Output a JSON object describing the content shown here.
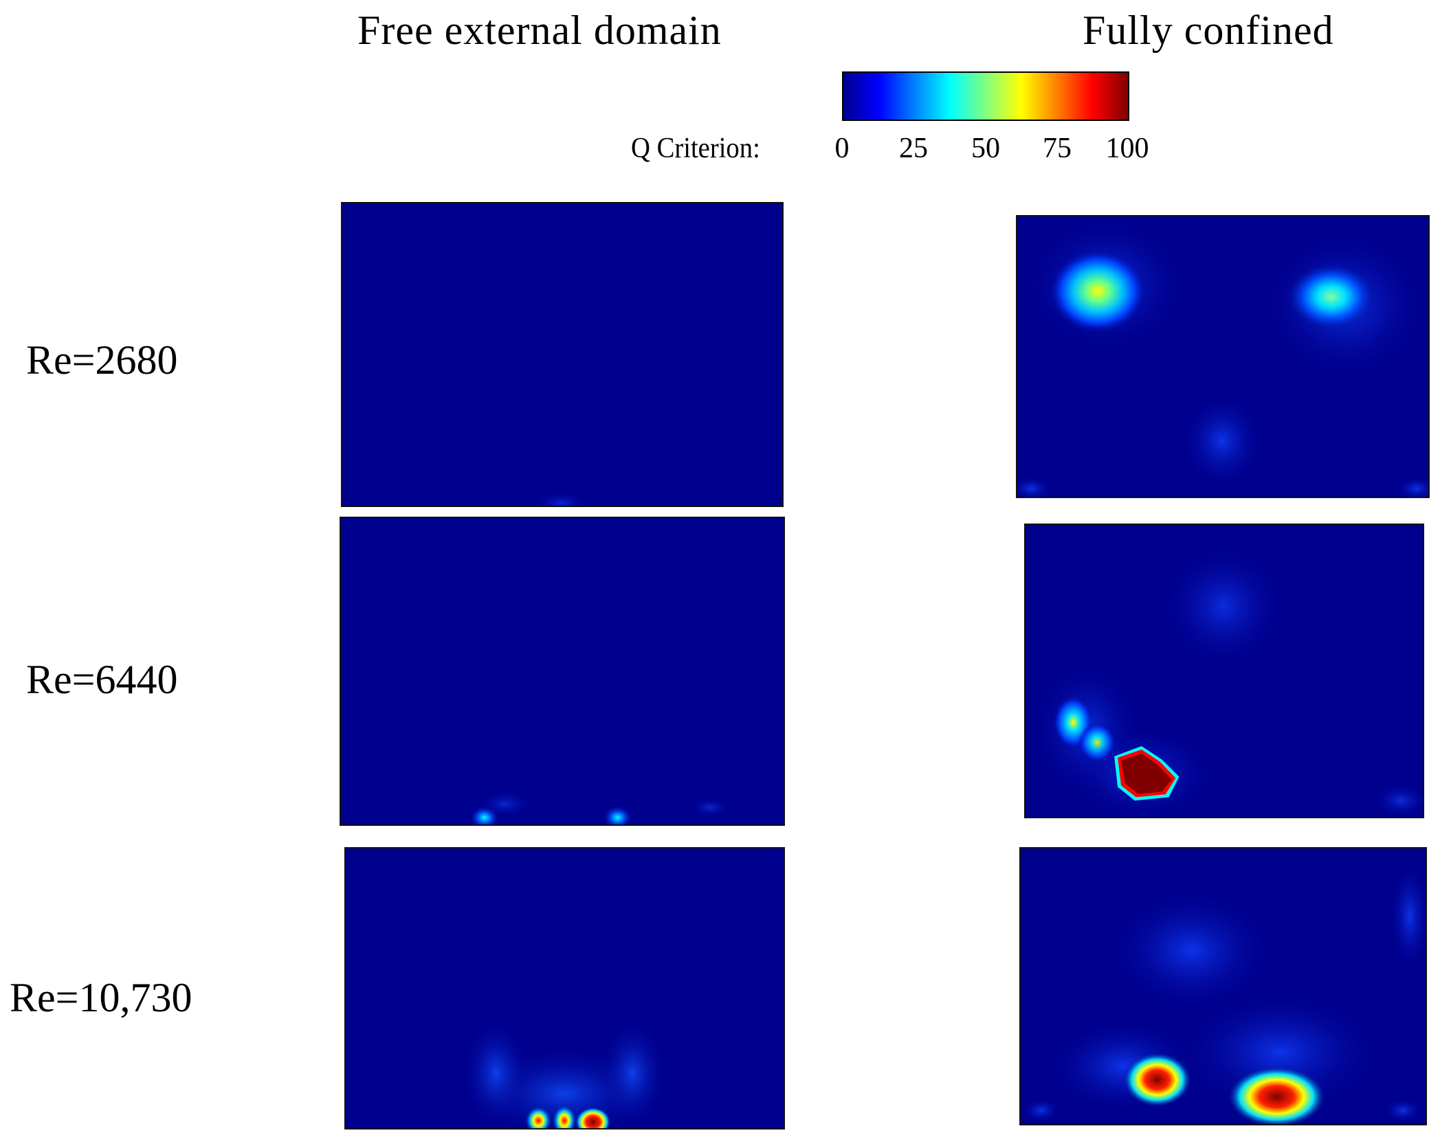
{
  "column_titles": {
    "free": "Free external domain",
    "confined": "Fully confined"
  },
  "colorbar": {
    "label": "Q Criterion:",
    "ticks": [
      "0",
      "25",
      "50",
      "75",
      "100"
    ],
    "colors": [
      "#00008f",
      "#0000ff",
      "#0080ff",
      "#00ffff",
      "#80ff80",
      "#ffff00",
      "#ff8000",
      "#ff0000",
      "#800000"
    ]
  },
  "rows": [
    {
      "label": "Re=2680"
    },
    {
      "label": "Re=6440"
    },
    {
      "label": "Re=10,730"
    }
  ],
  "panel_background": "#00008f"
}
